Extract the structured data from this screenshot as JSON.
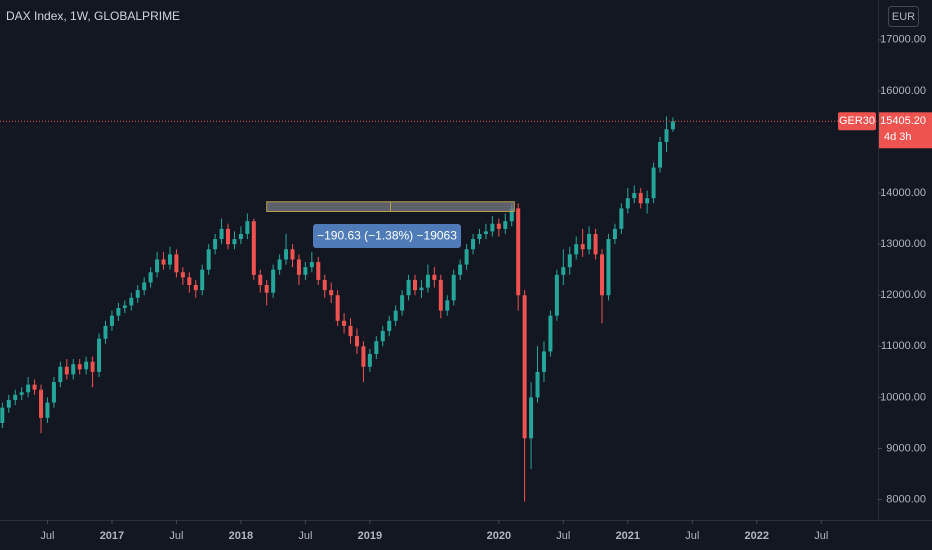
{
  "chart_data": {
    "type": "candlestick",
    "title": "DAX Index, 1W, GLOBALPRIME",
    "currency": "EUR",
    "up_color": "#26a69a",
    "down_color": "#ef5350",
    "grid": false,
    "xlim": [
      2016.132,
      2022.94
    ],
    "ylim": [
      7600,
      17780
    ],
    "xticks": [
      {
        "value": 2016.5,
        "label": "Jul"
      },
      2017,
      {
        "value": 2017.5,
        "label": "Jul"
      },
      2018,
      {
        "value": 2018.5,
        "label": "Jul"
      },
      2019,
      2020,
      {
        "value": 2020.5,
        "label": "Jul"
      },
      2021,
      {
        "value": 2021.5,
        "label": "Jul"
      },
      2022,
      {
        "value": 2022.5,
        "label": "Jul"
      }
    ],
    "yticks": [
      {
        "value": 8000,
        "label": "8000.00"
      },
      {
        "value": 9000,
        "label": "9000.00"
      },
      {
        "value": 10000,
        "label": "10000.00"
      },
      {
        "value": 11000,
        "label": "11000.00"
      },
      {
        "value": 12000,
        "label": "12000.00"
      },
      {
        "value": 13000,
        "label": "13000.00"
      },
      {
        "value": 14000,
        "label": "14000.00"
      },
      {
        "value": 15000,
        "label": "15000.00"
      },
      {
        "value": 16000,
        "label": "16000.00"
      },
      {
        "value": 17000,
        "label": "17000.00"
      }
    ],
    "x": [
      2016.15,
      2016.2,
      2016.25,
      2016.3,
      2016.35,
      2016.4,
      2016.45,
      2016.5,
      2016.55,
      2016.6,
      2016.65,
      2016.7,
      2016.75,
      2016.8,
      2016.85,
      2016.9,
      2016.95,
      2017.0,
      2017.05,
      2017.1,
      2017.15,
      2017.2,
      2017.25,
      2017.3,
      2017.35,
      2017.4,
      2017.45,
      2017.5,
      2017.55,
      2017.6,
      2017.65,
      2017.7,
      2017.75,
      2017.8,
      2017.85,
      2017.9,
      2017.95,
      2018.0,
      2018.05,
      2018.1,
      2018.15,
      2018.2,
      2018.25,
      2018.3,
      2018.35,
      2018.4,
      2018.45,
      2018.5,
      2018.55,
      2018.6,
      2018.65,
      2018.7,
      2018.75,
      2018.8,
      2018.85,
      2018.9,
      2018.95,
      2019.0,
      2019.05,
      2019.1,
      2019.15,
      2019.2,
      2019.25,
      2019.3,
      2019.35,
      2019.4,
      2019.45,
      2019.5,
      2019.55,
      2019.6,
      2019.65,
      2019.7,
      2019.75,
      2019.8,
      2019.85,
      2019.9,
      2019.95,
      2020.0,
      2020.05,
      2020.1,
      2020.15,
      2020.2,
      2020.25,
      2020.3,
      2020.35,
      2020.4,
      2020.45,
      2020.5,
      2020.55,
      2020.6,
      2020.65,
      2020.7,
      2020.75,
      2020.8,
      2020.85,
      2020.9,
      2020.95,
      2021.0,
      2021.05,
      2021.1,
      2021.15,
      2021.2,
      2021.25,
      2021.3,
      2021.35
    ],
    "open": [
      9500,
      9800,
      9950,
      10050,
      10100,
      10250,
      10150,
      9600,
      9900,
      10300,
      10600,
      10450,
      10650,
      10550,
      10700,
      10500,
      11150,
      11400,
      11600,
      11750,
      11800,
      11950,
      12100,
      12250,
      12450,
      12700,
      12600,
      12800,
      12450,
      12350,
      12200,
      12100,
      12500,
      12900,
      13100,
      13300,
      13000,
      13100,
      13200,
      13450,
      12400,
      12200,
      12050,
      12500,
      12700,
      12900,
      12700,
      12400,
      12550,
      12650,
      12300,
      12100,
      12000,
      11500,
      11400,
      11200,
      11000,
      10600,
      10850,
      11100,
      11300,
      11500,
      11700,
      12000,
      12300,
      12100,
      12150,
      12400,
      12300,
      11700,
      11900,
      12400,
      12600,
      12900,
      13100,
      13200,
      13250,
      13400,
      13300,
      13450,
      13700,
      12000,
      9200,
      10000,
      10500,
      10900,
      11600,
      12400,
      12550,
      12800,
      13000,
      12900,
      13200,
      12800,
      12000,
      13100,
      13300,
      13700,
      13900,
      14000,
      13800,
      13900,
      14500,
      15000,
      15250
    ],
    "high": [
      9900,
      10050,
      10150,
      10200,
      10400,
      10350,
      10250,
      10000,
      10400,
      10700,
      10750,
      10750,
      10750,
      10800,
      10800,
      11250,
      11500,
      11700,
      11850,
      11900,
      12050,
      12200,
      12350,
      12550,
      12850,
      12850,
      12950,
      12900,
      12550,
      12450,
      12300,
      12600,
      13000,
      13200,
      13500,
      13400,
      13250,
      13350,
      13600,
      13500,
      12500,
      12300,
      12600,
      12800,
      13200,
      13000,
      12800,
      12650,
      12850,
      12750,
      12400,
      12250,
      12100,
      11650,
      11550,
      11350,
      11100,
      10950,
      11200,
      11400,
      11600,
      11800,
      12100,
      12400,
      12400,
      12300,
      12600,
      12550,
      12400,
      12000,
      12500,
      12700,
      13000,
      13200,
      13300,
      13400,
      13550,
      13500,
      13600,
      13800,
      13800,
      12100,
      10300,
      11000,
      11100,
      11700,
      12500,
      12900,
      12950,
      13150,
      13300,
      13350,
      13300,
      12900,
      13200,
      13400,
      13800,
      14100,
      14150,
      14100,
      14050,
      14600,
      15100,
      15500,
      15480
    ],
    "low": [
      9400,
      9700,
      9850,
      9950,
      10000,
      10050,
      9300,
      9500,
      9800,
      10200,
      10350,
      10350,
      10450,
      10450,
      10200,
      10400,
      11050,
      11300,
      11500,
      11650,
      11700,
      11850,
      12000,
      12150,
      12350,
      12500,
      12500,
      12350,
      12200,
      12050,
      11950,
      12000,
      12400,
      12800,
      13000,
      12900,
      12900,
      13000,
      13100,
      12300,
      12050,
      11800,
      11950,
      12400,
      12600,
      12550,
      12200,
      12300,
      12450,
      12200,
      11950,
      11850,
      11400,
      11250,
      11050,
      10850,
      10300,
      10500,
      10750,
      11000,
      11200,
      11400,
      11600,
      11900,
      12000,
      11950,
      12050,
      12150,
      11550,
      11600,
      11800,
      12300,
      12500,
      12800,
      13000,
      13100,
      13150,
      13150,
      13200,
      13350,
      11700,
      7960,
      8600,
      9900,
      10300,
      10800,
      11500,
      12200,
      12400,
      12700,
      12750,
      12800,
      12700,
      11450,
      11900,
      13000,
      13200,
      13600,
      13800,
      13700,
      13600,
      13800,
      14400,
      14800,
      15200
    ],
    "close": [
      9800,
      9950,
      10050,
      10100,
      10250,
      10150,
      9600,
      9900,
      10300,
      10600,
      10450,
      10650,
      10550,
      10700,
      10500,
      11150,
      11400,
      11600,
      11750,
      11800,
      11950,
      12100,
      12250,
      12450,
      12700,
      12600,
      12800,
      12450,
      12350,
      12200,
      12100,
      12500,
      12900,
      13100,
      13300,
      13000,
      13100,
      13200,
      13450,
      12400,
      12200,
      12050,
      12500,
      12700,
      12900,
      12700,
      12400,
      12550,
      12650,
      12300,
      12100,
      12000,
      11500,
      11400,
      11200,
      11000,
      10600,
      10850,
      11100,
      11300,
      11500,
      11700,
      12000,
      12300,
      12100,
      12150,
      12400,
      12300,
      11700,
      11900,
      12400,
      12600,
      12900,
      13100,
      13200,
      13250,
      13400,
      13300,
      13450,
      13700,
      12000,
      9200,
      10000,
      10500,
      10900,
      11600,
      12400,
      12550,
      12800,
      13000,
      12900,
      13200,
      12800,
      12000,
      13100,
      13300,
      13700,
      13900,
      14000,
      13800,
      13900,
      14500,
      15000,
      15250,
      15405.2
    ],
    "last_price": {
      "value": 15405.2,
      "label": "15405.20"
    },
    "symbol": "GER30",
    "countdown": "4d 3h",
    "measure": {
      "x1": 2018.2,
      "x2": 2020.12,
      "from": 13830,
      "to": 13640,
      "label": "−190.63 (−1.38%) −19063"
    }
  }
}
